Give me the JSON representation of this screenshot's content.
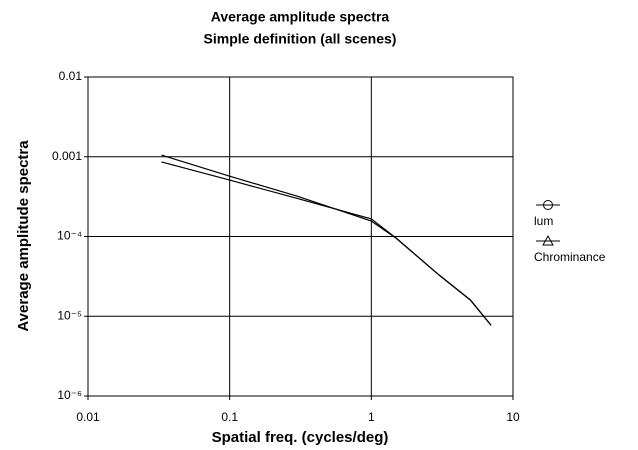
{
  "chart_data": {
    "type": "line",
    "title": "Average amplitude spectra",
    "subtitle": "Simple definition (all scenes)",
    "x_label": "Spatial freq. (cycles/deg)",
    "y_label": "Average amplitude spectra",
    "x": [
      0.033,
      0.1,
      0.3,
      1,
      1.5,
      3,
      5,
      7
    ],
    "series": [
      {
        "name": "lum",
        "color": "#000000",
        "marker": "circle",
        "values": [
          0.00105,
          0.00057,
          0.00032,
          0.000156,
          9.5e-05,
          3.3e-05,
          1.6e-05,
          7.7e-06
        ]
      },
      {
        "name": "Chrominance",
        "color": "#000000",
        "marker": "triangle",
        "values": [
          0.00086,
          0.00051,
          0.0003,
          0.000166,
          9.5e-05,
          3.3e-05,
          1.6e-05,
          7.7e-06
        ]
      }
    ],
    "xlim": [
      0.01,
      10
    ],
    "xticks": [
      0.01,
      0.1,
      1,
      10
    ],
    "ylim": [
      1e-06,
      0.01
    ],
    "yticks": [
      {
        "value": 1e-06,
        "label": "10⁻⁶"
      },
      {
        "value": 1e-05,
        "label": "10⁻⁵"
      },
      {
        "value": 0.0001,
        "label": "10⁻⁴"
      },
      0.001,
      0.01
    ],
    "xscale": "log",
    "yscale": "log",
    "grid": true,
    "legend": "right"
  }
}
